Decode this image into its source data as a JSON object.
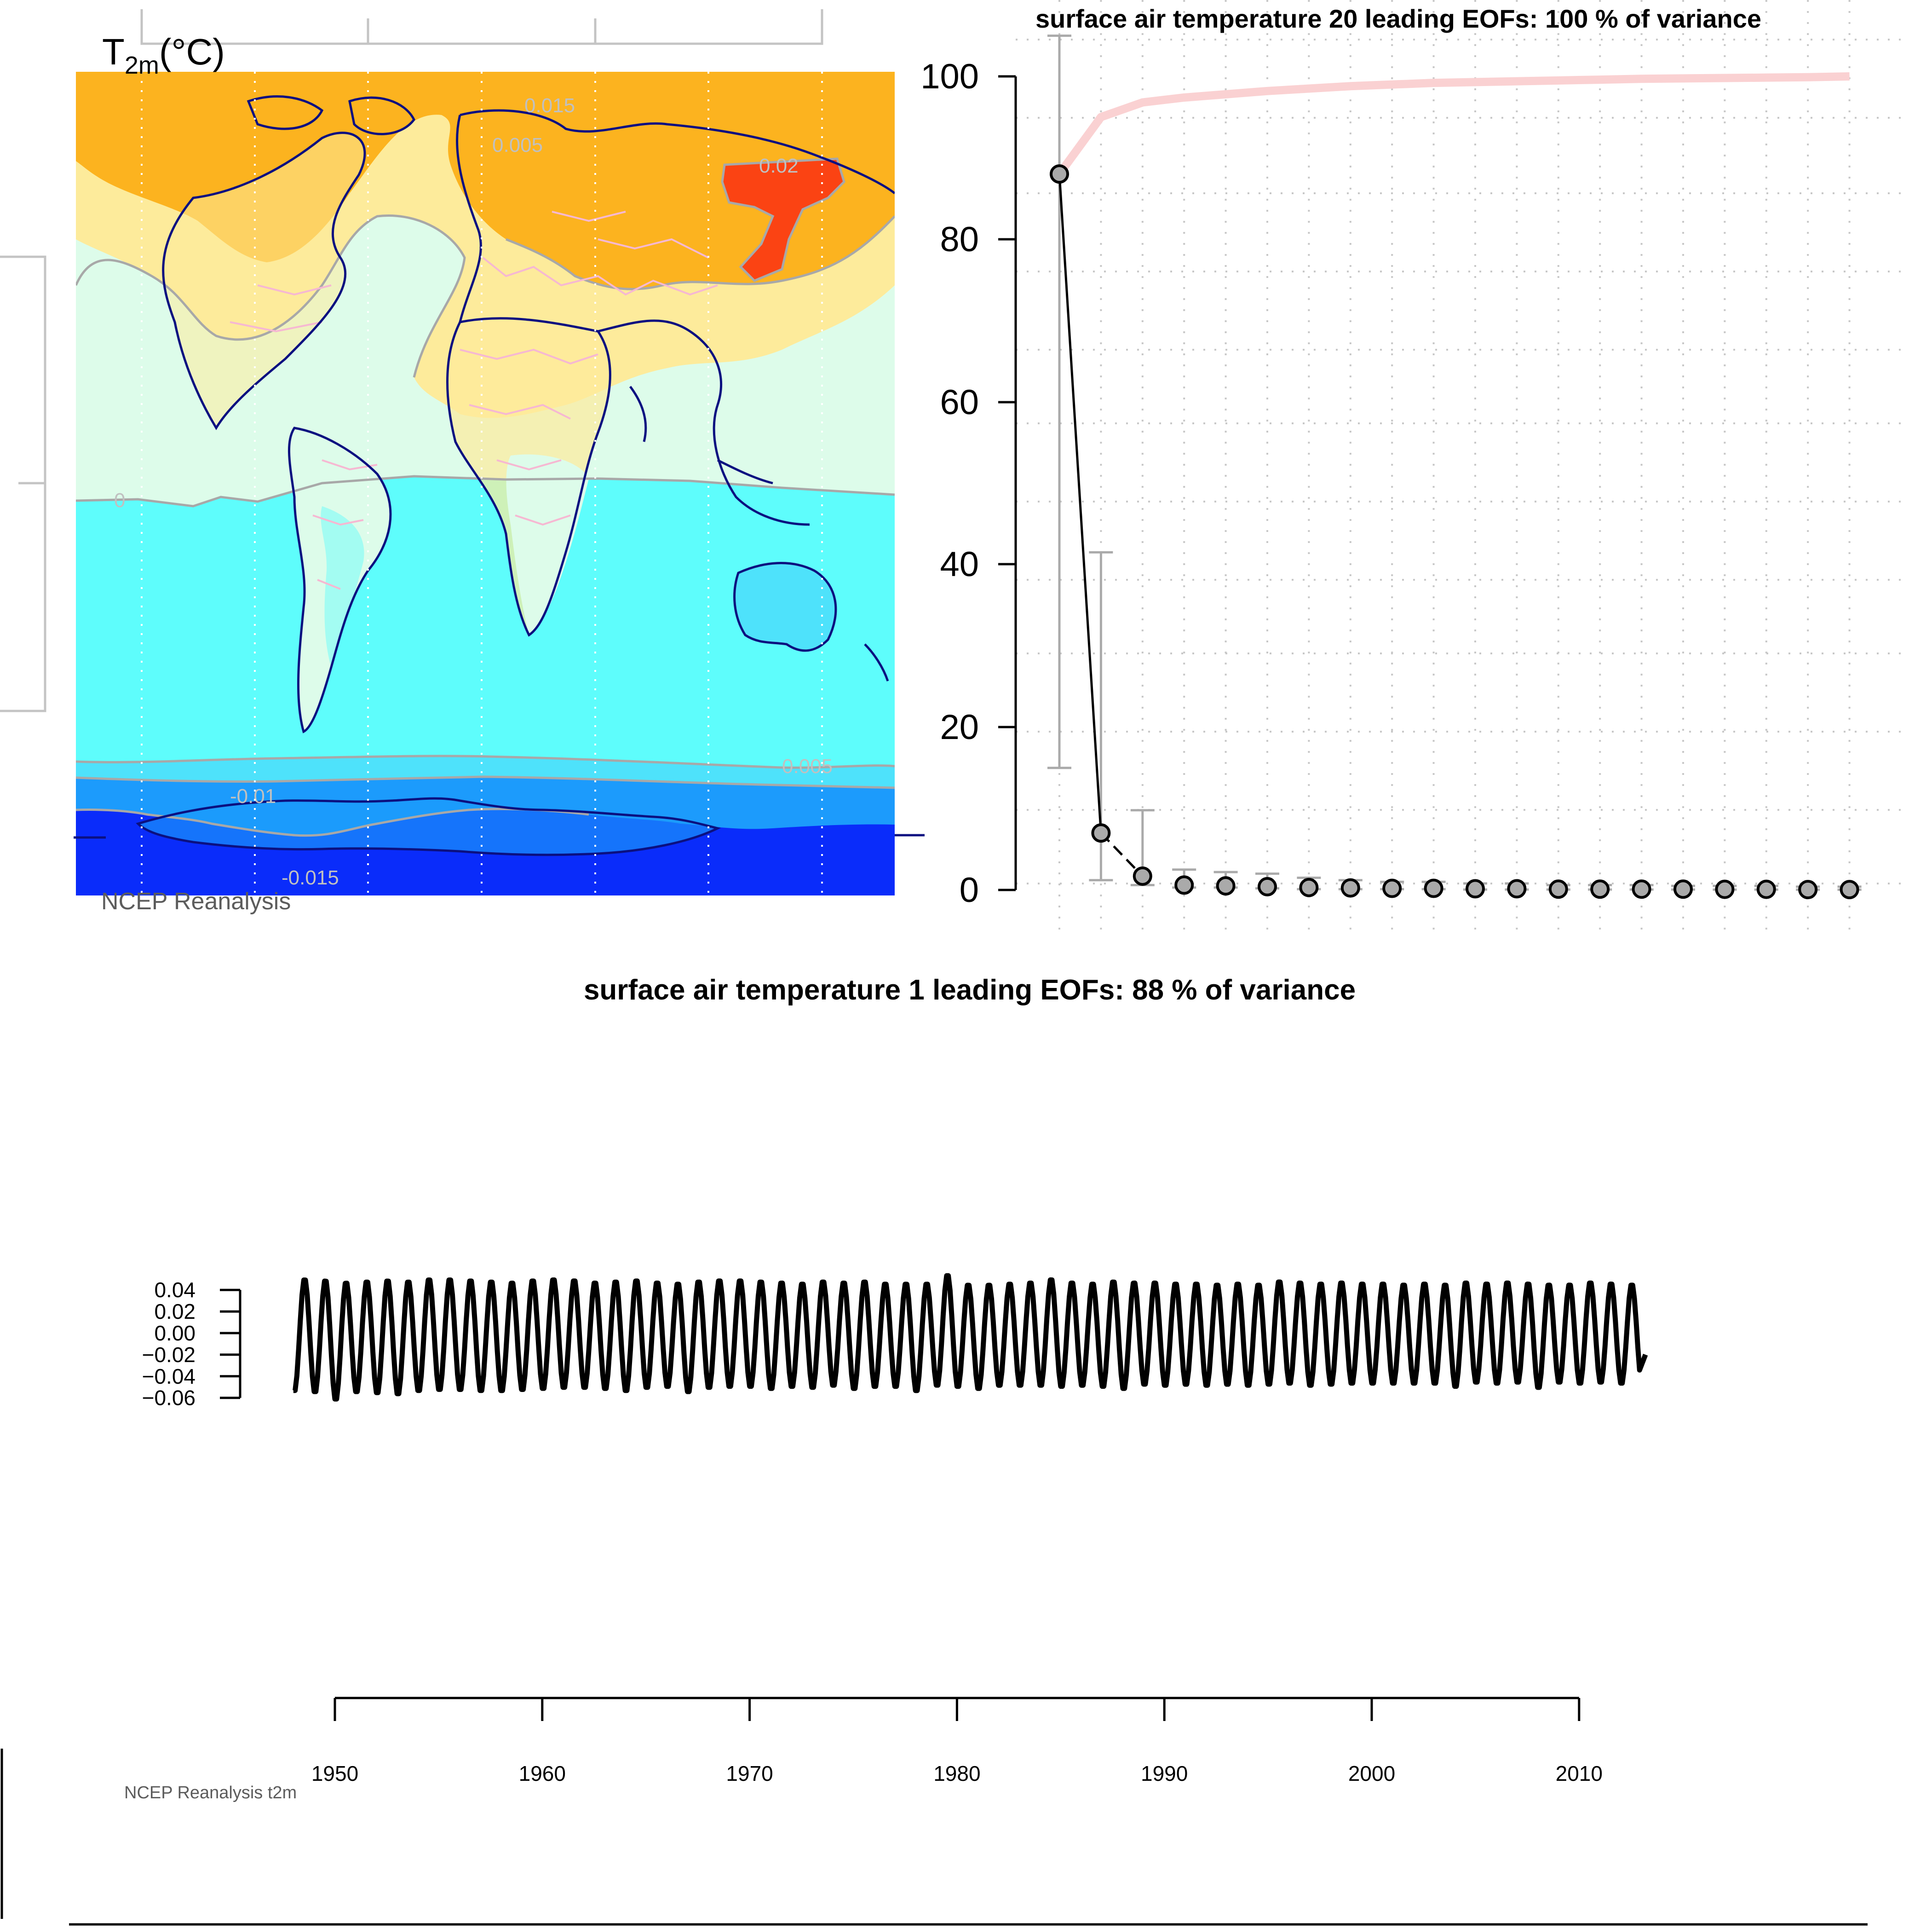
{
  "colors": {
    "ocean_pale": "#ddfcea",
    "land_yellow": "#fdeb9b",
    "orange": "#fcb31f",
    "orange_red": "#fb4313",
    "cyan": "#5efdfc",
    "light_blue": "#4ee2fb",
    "mid_blue": "#1c9bfc",
    "deep_blue": "#0a2cfa",
    "coast": "#0b1080",
    "borders": "#f6b8d2",
    "contour": "#a8a8a8",
    "cum_line": "#fad1d2",
    "grid": "#c8c8c8"
  },
  "map_panel": {
    "title_main": "T",
    "title_sub": "2m",
    "title_unit": "(°C)",
    "caption": "NCEP Reanalysis",
    "contour_labels": [
      "0.015",
      "0.005",
      "0.02",
      "0",
      "0.005",
      "-0.01",
      "-0.015"
    ]
  },
  "footer_caption": "NCEP Reanalysis t2m",
  "chart_data": [
    {
      "type": "scatter",
      "title": "surface air temperature 20 leading EOFs:  100 % of variance",
      "xlabel": "",
      "ylabel": "",
      "ylim": [
        0,
        100
      ],
      "yticks": [
        0,
        20,
        40,
        60,
        80,
        100
      ],
      "x": [
        1,
        2,
        3,
        4,
        5,
        6,
        7,
        8,
        9,
        10,
        11,
        12,
        13,
        14,
        15,
        16,
        17,
        18,
        19,
        20
      ],
      "series": [
        {
          "values": [
            88,
            7,
            1.7,
            0.6,
            0.5,
            0.4,
            0.3,
            0.25,
            0.2,
            0.2,
            0.15,
            0.15,
            0.1,
            0.1,
            0.1,
            0.1,
            0.08,
            0.08,
            0.05,
            0.05
          ],
          "error_low": [
            15,
            1.2,
            0.6,
            0.3,
            0.3,
            0.2,
            0.1,
            0.1,
            0.1,
            0.1,
            0.05,
            0.05,
            0.05,
            0.05,
            0.05,
            0.05,
            0.04,
            0.04,
            0.03,
            0.03
          ],
          "error_high": [
            105,
            41.5,
            9.8,
            2.5,
            2.2,
            2.0,
            1.5,
            1.2,
            1.0,
            1.0,
            0.8,
            0.8,
            0.6,
            0.6,
            0.6,
            0.5,
            0.5,
            0.5,
            0.4,
            0.4
          ]
        },
        {
          "values": [
            88,
            95,
            96.8,
            97.4,
            97.8,
            98.2,
            98.5,
            98.8,
            99.0,
            99.2,
            99.3,
            99.4,
            99.5,
            99.6,
            99.7,
            99.75,
            99.8,
            99.85,
            99.9,
            100
          ]
        }
      ],
      "grid": true
    },
    {
      "type": "line",
      "title": "surface air temperature 1 leading EOFs:  88 % of variance",
      "xlabel": "",
      "ylabel": "",
      "xticks": [
        1950,
        1960,
        1970,
        1980,
        1990,
        2000,
        2010
      ],
      "yticks": [
        -0.06,
        -0.04,
        -0.02,
        0.0,
        0.02,
        0.04
      ],
      "ytick_labels": [
        "−0.06",
        "−0.04",
        "−0.02",
        "0.00",
        "0.02",
        "0.04"
      ],
      "xlim": [
        1948,
        2013.2
      ],
      "start_year": 1948,
      "end_year": 2013.2,
      "annual_max": [
        0.051,
        0.05,
        0.048,
        0.049,
        0.05,
        0.049,
        0.051,
        0.051,
        0.05,
        0.049,
        0.048,
        0.05,
        0.051,
        0.05,
        0.048,
        0.049,
        0.05,
        0.048,
        0.047,
        0.049,
        0.05,
        0.05,
        0.049,
        0.048,
        0.047,
        0.049,
        0.048,
        0.049,
        0.047,
        0.047,
        0.047,
        0.055,
        0.046,
        0.046,
        0.047,
        0.048,
        0.051,
        0.048,
        0.047,
        0.049,
        0.048,
        0.048,
        0.047,
        0.047,
        0.046,
        0.047,
        0.046,
        0.049,
        0.048,
        0.047,
        0.048,
        0.047,
        0.047,
        0.046,
        0.047,
        0.046,
        0.048,
        0.047,
        0.048,
        0.047,
        0.046,
        0.046,
        0.048,
        0.047,
        0.046
      ],
      "annual_min": [
        -0.055,
        -0.056,
        -0.063,
        -0.056,
        -0.057,
        -0.058,
        -0.055,
        -0.054,
        -0.054,
        -0.055,
        -0.055,
        -0.054,
        -0.053,
        -0.052,
        -0.052,
        -0.053,
        -0.055,
        -0.052,
        -0.051,
        -0.056,
        -0.052,
        -0.051,
        -0.051,
        -0.053,
        -0.051,
        -0.052,
        -0.05,
        -0.053,
        -0.051,
        -0.051,
        -0.055,
        -0.05,
        -0.051,
        -0.053,
        -0.05,
        -0.05,
        -0.05,
        -0.051,
        -0.05,
        -0.051,
        -0.053,
        -0.049,
        -0.05,
        -0.049,
        -0.05,
        -0.049,
        -0.05,
        -0.049,
        -0.048,
        -0.05,
        -0.049,
        -0.048,
        -0.048,
        -0.048,
        -0.048,
        -0.048,
        -0.051,
        -0.047,
        -0.048,
        -0.047,
        -0.052,
        -0.047,
        -0.048,
        -0.047,
        -0.048
      ],
      "end_value": -0.02
    }
  ]
}
